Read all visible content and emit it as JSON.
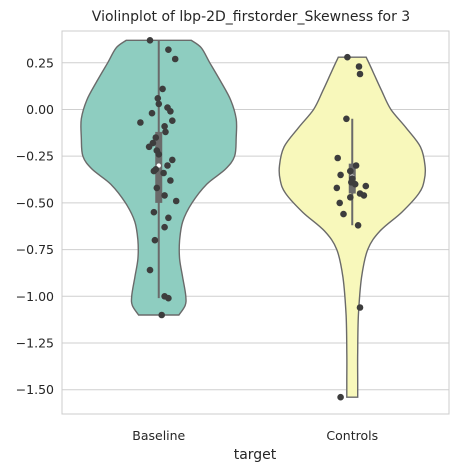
{
  "chart_data": {
    "type": "violin",
    "title": "Violinplot of lbp-2D_firstorder_Skewness for 3",
    "xlabel": "target",
    "ylabel": "",
    "categories": [
      "Baseline",
      "Controls"
    ],
    "ylim": [
      -1.63,
      0.42
    ],
    "yticks": [
      0.25,
      0.0,
      -0.25,
      -0.5,
      -0.75,
      -1.0,
      -1.25,
      -1.5
    ],
    "ytick_labels": [
      "0.25",
      "0.00",
      "−0.25",
      "−0.50",
      "−0.75",
      "−1.00",
      "−1.25",
      "−1.50"
    ],
    "grid": "horizontal",
    "series": [
      {
        "category": "Baseline",
        "color": "#8ecdc0",
        "box": {
          "q1": -0.5,
          "median": -0.3,
          "q3": -0.12,
          "whisker_low": -1.01,
          "whisker_high": 0.37
        },
        "density_profile": [
          [
            0.37,
            0.42
          ],
          [
            0.33,
            0.55
          ],
          [
            0.25,
            0.66
          ],
          [
            0.15,
            0.8
          ],
          [
            0.05,
            0.93
          ],
          [
            -0.05,
            1.0
          ],
          [
            -0.15,
            1.0
          ],
          [
            -0.25,
            0.98
          ],
          [
            -0.32,
            0.86
          ],
          [
            -0.4,
            0.62
          ],
          [
            -0.5,
            0.43
          ],
          [
            -0.6,
            0.31
          ],
          [
            -0.7,
            0.27
          ],
          [
            -0.8,
            0.27
          ],
          [
            -0.9,
            0.31
          ],
          [
            -1.0,
            0.35
          ],
          [
            -1.05,
            0.34
          ],
          [
            -1.1,
            0.26
          ]
        ],
        "points": [
          [
            0.37,
            -0.09
          ],
          [
            0.32,
            0.1
          ],
          [
            0.27,
            0.17
          ],
          [
            0.11,
            0.04
          ],
          [
            0.06,
            -0.01
          ],
          [
            0.03,
            0.0
          ],
          [
            0.01,
            0.09
          ],
          [
            -0.01,
            0.12
          ],
          [
            -0.02,
            -0.07
          ],
          [
            -0.07,
            -0.19
          ],
          [
            -0.06,
            0.14
          ],
          [
            -0.09,
            0.06
          ],
          [
            -0.12,
            0.07
          ],
          [
            -0.15,
            -0.03
          ],
          [
            -0.18,
            -0.06
          ],
          [
            -0.2,
            -0.1
          ],
          [
            -0.22,
            -0.02
          ],
          [
            -0.24,
            0.0
          ],
          [
            -0.27,
            0.14
          ],
          [
            -0.3,
            0.09
          ],
          [
            -0.33,
            -0.05
          ],
          [
            -0.32,
            -0.03
          ],
          [
            -0.34,
            0.05
          ],
          [
            -0.38,
            0.12
          ],
          [
            -0.42,
            -0.02
          ],
          [
            -0.46,
            0.06
          ],
          [
            -0.49,
            0.18
          ],
          [
            -0.55,
            -0.05
          ],
          [
            -0.58,
            0.1
          ],
          [
            -0.63,
            0.06
          ],
          [
            -0.7,
            -0.04
          ],
          [
            -0.86,
            -0.09
          ],
          [
            -1.0,
            0.06
          ],
          [
            -1.01,
            0.1
          ],
          [
            -1.1,
            0.03
          ]
        ]
      },
      {
        "category": "Controls",
        "color": "#f8f8bb",
        "box": {
          "q1": -0.45,
          "median": -0.36,
          "q3": -0.29,
          "whisker_low": -0.62,
          "whisker_high": -0.05
        },
        "density_profile": [
          [
            0.28,
            0.18
          ],
          [
            0.2,
            0.27
          ],
          [
            0.1,
            0.38
          ],
          [
            0.0,
            0.5
          ],
          [
            -0.1,
            0.7
          ],
          [
            -0.2,
            0.88
          ],
          [
            -0.3,
            0.94
          ],
          [
            -0.38,
            0.93
          ],
          [
            -0.45,
            0.86
          ],
          [
            -0.55,
            0.64
          ],
          [
            -0.65,
            0.36
          ],
          [
            -0.75,
            0.2
          ],
          [
            -0.9,
            0.12
          ],
          [
            -1.1,
            0.08
          ],
          [
            -1.3,
            0.07
          ],
          [
            -1.45,
            0.07
          ],
          [
            -1.54,
            0.07
          ]
        ],
        "points": [
          [
            0.28,
            -0.05
          ],
          [
            0.23,
            0.07
          ],
          [
            0.19,
            0.08
          ],
          [
            -0.05,
            -0.06
          ],
          [
            -0.26,
            -0.15
          ],
          [
            -0.3,
            0.04
          ],
          [
            -0.33,
            -0.02
          ],
          [
            -0.35,
            -0.12
          ],
          [
            -0.37,
            0.0
          ],
          [
            -0.39,
            -0.01
          ],
          [
            -0.4,
            0.03
          ],
          [
            -0.41,
            0.14
          ],
          [
            -0.42,
            -0.16
          ],
          [
            -0.45,
            0.08
          ],
          [
            -0.46,
            0.12
          ],
          [
            -0.47,
            -0.02
          ],
          [
            -0.5,
            -0.13
          ],
          [
            -0.56,
            -0.09
          ],
          [
            -0.62,
            0.06
          ],
          [
            -1.06,
            0.08
          ],
          [
            -1.54,
            -0.12
          ]
        ]
      }
    ]
  }
}
